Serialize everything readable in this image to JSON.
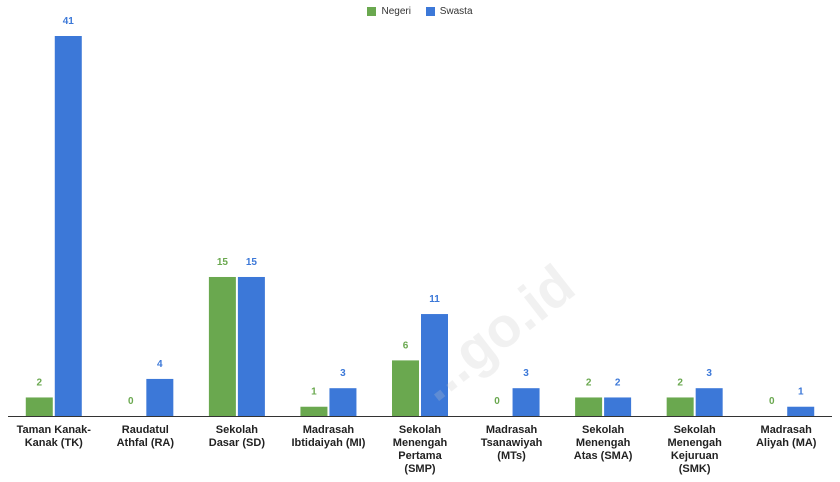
{
  "chart_data": {
    "type": "bar",
    "categories": [
      [
        "Taman Kanak-",
        "Kanak (TK)"
      ],
      [
        "Raudatul",
        "Athfal (RA)"
      ],
      [
        "Sekolah",
        "Dasar (SD)"
      ],
      [
        "Madrasah",
        "Ibtidaiyah (MI)"
      ],
      [
        "Sekolah",
        "Menengah",
        "Pertama",
        "(SMP)"
      ],
      [
        "Madrasah",
        "Tsanawiyah",
        "(MTs)"
      ],
      [
        "Sekolah",
        "Menengah",
        "Atas (SMA)"
      ],
      [
        "Sekolah",
        "Menengah",
        "Kejuruan",
        "(SMK)"
      ],
      [
        "Madrasah",
        "Aliyah (MA)"
      ]
    ],
    "series": [
      {
        "name": "Negeri",
        "color": "#6aa84f",
        "values": [
          2,
          0,
          15,
          1,
          6,
          0,
          2,
          2,
          0
        ]
      },
      {
        "name": "Swasta",
        "color": "#3c78d8",
        "values": [
          41,
          4,
          15,
          3,
          11,
          3,
          2,
          3,
          1
        ]
      }
    ],
    "ylim": [
      0,
      41
    ],
    "grid": false,
    "legend": "top-center",
    "data_labels": true
  },
  "watermark": "...go.id"
}
